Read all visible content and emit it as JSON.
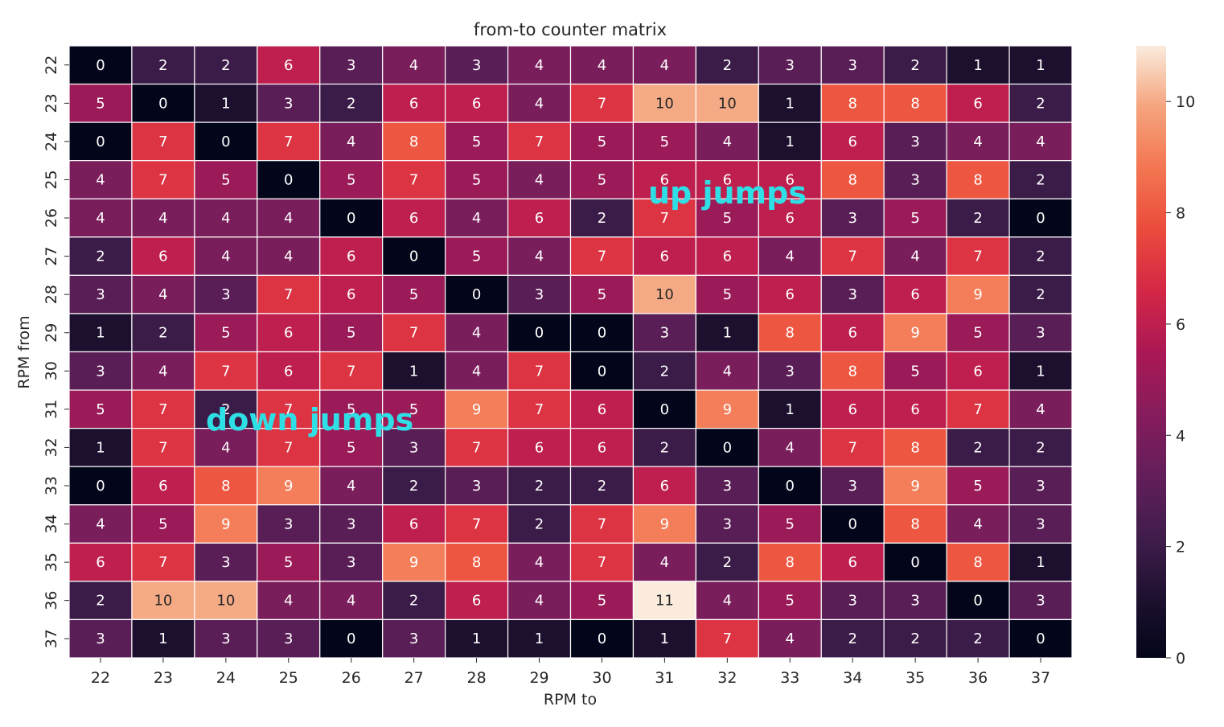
{
  "chart_data": {
    "type": "heatmap",
    "title": "from-to counter matrix",
    "xlabel": "RPM to",
    "ylabel": "RPM from",
    "x_categories": [
      "22",
      "23",
      "24",
      "25",
      "26",
      "27",
      "28",
      "29",
      "30",
      "31",
      "32",
      "33",
      "34",
      "35",
      "36",
      "37"
    ],
    "y_categories": [
      "22",
      "23",
      "24",
      "25",
      "26",
      "27",
      "28",
      "29",
      "30",
      "31",
      "32",
      "33",
      "34",
      "35",
      "36",
      "37"
    ],
    "values": [
      [
        0,
        2,
        2,
        6,
        3,
        4,
        3,
        4,
        4,
        4,
        2,
        3,
        3,
        2,
        1,
        1
      ],
      [
        5,
        0,
        1,
        3,
        2,
        6,
        6,
        4,
        7,
        10,
        10,
        1,
        8,
        8,
        6,
        2
      ],
      [
        0,
        7,
        0,
        7,
        4,
        8,
        5,
        7,
        5,
        5,
        4,
        1,
        6,
        3,
        4,
        4
      ],
      [
        4,
        7,
        5,
        0,
        5,
        7,
        5,
        4,
        5,
        6,
        6,
        6,
        8,
        3,
        8,
        2
      ],
      [
        4,
        4,
        4,
        4,
        0,
        6,
        4,
        6,
        2,
        7,
        5,
        6,
        3,
        5,
        2,
        0
      ],
      [
        2,
        6,
        4,
        4,
        6,
        0,
        5,
        4,
        7,
        6,
        6,
        4,
        7,
        4,
        7,
        2
      ],
      [
        3,
        4,
        3,
        7,
        6,
        5,
        0,
        3,
        5,
        10,
        5,
        6,
        3,
        6,
        9,
        2
      ],
      [
        1,
        2,
        5,
        6,
        5,
        7,
        4,
        0,
        0,
        3,
        1,
        8,
        6,
        9,
        5,
        3
      ],
      [
        3,
        4,
        7,
        6,
        7,
        1,
        4,
        7,
        0,
        2,
        4,
        3,
        8,
        5,
        6,
        1
      ],
      [
        5,
        7,
        2,
        7,
        5,
        5,
        9,
        7,
        6,
        0,
        9,
        1,
        6,
        6,
        7,
        4
      ],
      [
        1,
        7,
        4,
        7,
        5,
        3,
        7,
        6,
        6,
        2,
        0,
        4,
        7,
        8,
        2,
        2
      ],
      [
        0,
        6,
        8,
        9,
        4,
        2,
        3,
        2,
        2,
        6,
        3,
        0,
        3,
        9,
        5,
        3
      ],
      [
        4,
        5,
        9,
        3,
        3,
        6,
        7,
        2,
        7,
        9,
        3,
        5,
        0,
        8,
        4,
        3
      ],
      [
        6,
        7,
        3,
        5,
        3,
        9,
        8,
        4,
        7,
        4,
        2,
        8,
        6,
        0,
        8,
        1
      ],
      [
        2,
        10,
        10,
        4,
        4,
        2,
        6,
        4,
        5,
        11,
        4,
        5,
        3,
        3,
        0,
        3
      ],
      [
        3,
        1,
        3,
        3,
        0,
        3,
        1,
        1,
        0,
        1,
        7,
        4,
        2,
        2,
        2,
        0
      ]
    ],
    "vmin": 0,
    "vmax": 11,
    "colormap": "rocket",
    "colorbar_ticks": [
      0,
      2,
      4,
      6,
      8,
      10
    ],
    "annotations": [
      {
        "text": "up jumps",
        "color": "#2ee0e6"
      },
      {
        "text": "down jumps",
        "color": "#2ee0e6"
      }
    ],
    "grid": true
  }
}
